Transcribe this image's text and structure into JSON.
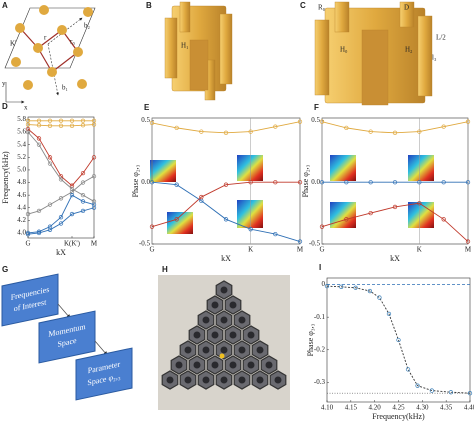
{
  "figure": {
    "panel_labels": [
      "A",
      "B",
      "C",
      "G",
      "H"
    ],
    "lattice_labels": [
      "b₂",
      "K'",
      "r",
      "r₀",
      "b₁",
      "y",
      "x"
    ],
    "model_b_labels": [
      "H₁"
    ],
    "model_c_labels": [
      "R₀",
      "D",
      "H₀",
      "H₂",
      "L/2",
      "l₃"
    ],
    "flow": [
      [
        "Frequencies",
        "of Interest"
      ],
      [
        "Momentum",
        "Space"
      ],
      [
        "Parameter",
        "Space φ₂,₃"
      ]
    ]
  },
  "chart_data": [
    {
      "type": "line",
      "label": "D",
      "ylabel": "Frequency(kHz)",
      "xlabel": "kX",
      "xlim": [
        0,
        1.5
      ],
      "ylim": [
        3.92,
        5.84
      ],
      "xticks": [
        {
          "value": 0,
          "label": "G"
        },
        {
          "value": 1,
          "label": "K(K')"
        },
        {
          "value": 1.5,
          "label": "M"
        }
      ],
      "yticks": [
        5.8,
        5.6,
        5.4,
        5.2,
        {
          "value": 5.0,
          "label": "5.0"
        },
        4.8,
        4.6,
        4.4,
        4.2,
        {
          "value": 4.0,
          "label": "4.0"
        }
      ],
      "x": [
        0,
        0.25,
        0.5,
        0.75,
        1,
        1.25,
        1.5
      ],
      "series": [
        {
          "color": "#e0a93f",
          "values": [
            5.78,
            5.78,
            5.78,
            5.78,
            5.78,
            5.78,
            5.78
          ]
        },
        {
          "color": "#e0a93f",
          "values": [
            5.72,
            5.71,
            5.7,
            5.7,
            5.7,
            5.71,
            5.72
          ]
        },
        {
          "color": "#c0392b",
          "values": [
            5.65,
            5.5,
            5.2,
            4.9,
            4.75,
            4.95,
            5.2
          ]
        },
        {
          "color": "#888888",
          "values": [
            5.6,
            5.4,
            5.1,
            4.85,
            4.7,
            4.6,
            4.5
          ]
        },
        {
          "color": "#888888",
          "values": [
            4.3,
            4.35,
            4.45,
            4.55,
            4.65,
            4.8,
            4.9
          ]
        },
        {
          "color": "#2e6fb5",
          "values": [
            4.0,
            4.02,
            4.1,
            4.25,
            4.6,
            4.5,
            4.45
          ]
        },
        {
          "color": "#2e6fb5",
          "values": [
            3.98,
            4.0,
            4.05,
            4.15,
            4.3,
            4.35,
            4.4
          ]
        }
      ]
    },
    {
      "type": "line",
      "label": "E",
      "ylabel": "Phase φ₂,₃",
      "xlabel": "kX",
      "xgrid": true,
      "xlim": [
        0,
        1.5
      ],
      "ylim": [
        -0.5,
        0.52
      ],
      "xticks": [
        {
          "value": 0,
          "label": "G"
        },
        {
          "value": 1,
          "label": "K"
        },
        {
          "value": 1.5,
          "label": "M"
        }
      ],
      "yticks": [
        0.5,
        {
          "value": 0,
          "label": "0.0"
        },
        -0.5
      ],
      "x": [
        0,
        0.25,
        0.5,
        0.75,
        1,
        1.25,
        1.5
      ],
      "series": [
        {
          "color": "#e0a93f",
          "values": [
            0.48,
            0.44,
            0.41,
            0.4,
            0.41,
            0.45,
            0.49
          ]
        },
        {
          "color": "#2e6fb5",
          "values": [
            0,
            -0.02,
            -0.15,
            -0.3,
            -0.38,
            -0.42,
            -0.48
          ]
        },
        {
          "color": "#c0392b",
          "values": [
            -0.36,
            -0.3,
            -0.12,
            -0.02,
            0,
            0,
            0
          ]
        }
      ]
    },
    {
      "type": "line",
      "label": "F",
      "ylabel": "Phase φ₂,₃",
      "xlabel": "kX",
      "xgrid": true,
      "xlim": [
        0,
        1.5
      ],
      "ylim": [
        -0.5,
        0.52
      ],
      "xticks": [
        {
          "value": 0,
          "label": "G"
        },
        {
          "value": 1,
          "label": "K"
        },
        {
          "value": 1.5,
          "label": "M"
        }
      ],
      "yticks": [
        0.5,
        {
          "value": 0,
          "label": "0.0"
        },
        -0.5
      ],
      "x": [
        0,
        0.25,
        0.5,
        0.75,
        1,
        1.25,
        1.5
      ],
      "series": [
        {
          "color": "#e0a93f",
          "values": [
            0.49,
            0.44,
            0.41,
            0.4,
            0.41,
            0.45,
            0.49
          ]
        },
        {
          "color": "#2e6fb5",
          "values": [
            0,
            0,
            0,
            0,
            0,
            0,
            0
          ]
        },
        {
          "color": "#c0392b",
          "values": [
            -0.36,
            -0.3,
            -0.25,
            -0.2,
            -0.17,
            -0.3,
            -0.48
          ]
        }
      ]
    },
    {
      "type": "line",
      "label": "I",
      "ylabel": "Phase φ₃,₃",
      "xlabel": "Frequency(kHz)",
      "xlim": [
        4.1,
        4.4
      ],
      "ylim": [
        -0.36,
        0.02
      ],
      "xticks": [
        {
          "value": 4.1,
          "label": "4.10"
        },
        4.15,
        {
          "value": 4.2,
          "label": "4.20"
        },
        4.25,
        {
          "value": 4.3,
          "label": "4.30"
        },
        4.35,
        {
          "value": 4.4,
          "label": "4.40"
        }
      ],
      "yticks": [
        0,
        -0.1,
        -0.2,
        -0.3
      ],
      "hlines": [
        0,
        -0.333
      ],
      "x": [
        4.1,
        4.13,
        4.16,
        4.19,
        4.21,
        4.23,
        4.25,
        4.27,
        4.29,
        4.32,
        4.36,
        4.4
      ],
      "series": [
        {
          "color": "#3a7fb8",
          "dash": true,
          "values": [
            -0.005,
            -0.007,
            -0.01,
            -0.02,
            -0.04,
            -0.09,
            -0.17,
            -0.26,
            -0.31,
            -0.325,
            -0.33,
            -0.333
          ]
        }
      ]
    }
  ]
}
